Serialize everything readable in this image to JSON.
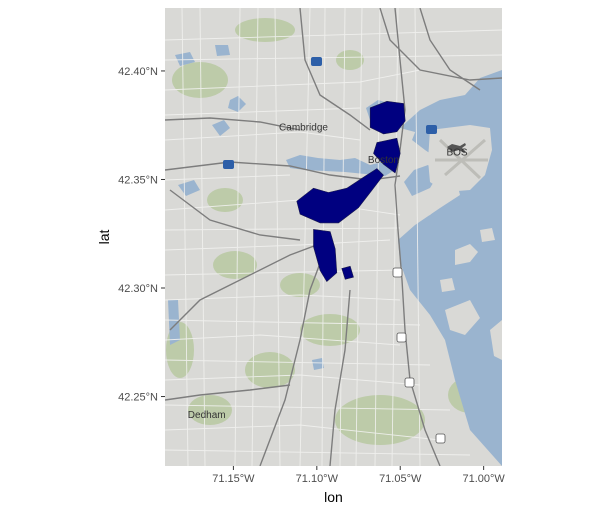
{
  "map": {
    "xlabel": "lon",
    "ylabel": "lat",
    "x_ticks": [
      {
        "value": -71.15,
        "label": "71.15°W"
      },
      {
        "value": -71.1,
        "label": "71.10°W"
      },
      {
        "value": -71.05,
        "label": "71.05°W"
      },
      {
        "value": -71.0,
        "label": "71.00°W"
      }
    ],
    "y_ticks": [
      {
        "value": 42.4,
        "label": "42.40°N"
      },
      {
        "value": 42.35,
        "label": "42.35°N"
      },
      {
        "value": 42.3,
        "label": "42.30°N"
      },
      {
        "value": 42.25,
        "label": "42.25°N"
      }
    ],
    "xlim": [
      -71.191,
      -70.989
    ],
    "ylim": [
      42.218,
      42.429
    ],
    "place_labels": [
      {
        "text": "Cambridge",
        "lon": -71.108,
        "lat": 42.3725
      },
      {
        "text": "Boston",
        "lon": -71.06,
        "lat": 42.3575
      },
      {
        "text": "BOS",
        "lon": -71.016,
        "lat": 42.361
      },
      {
        "text": "Dedham",
        "lon": -71.166,
        "lat": 42.24
      }
    ],
    "highlight_color": "#000080",
    "regions": [
      {
        "name": "north-end",
        "coords": [
          [
            -71.068,
            42.383
          ],
          [
            -71.058,
            42.386
          ],
          [
            -71.048,
            42.385
          ],
          [
            -71.047,
            42.377
          ],
          [
            -71.052,
            42.372
          ],
          [
            -71.06,
            42.371
          ],
          [
            -71.068,
            42.374
          ]
        ]
      },
      {
        "name": "downtown",
        "coords": [
          [
            -71.064,
            42.367
          ],
          [
            -71.052,
            42.369
          ],
          [
            -71.05,
            42.362
          ],
          [
            -71.053,
            42.353
          ],
          [
            -71.06,
            42.357
          ],
          [
            -71.066,
            42.362
          ]
        ]
      },
      {
        "name": "south-end-back-bay",
        "coords": [
          [
            -71.112,
            42.34
          ],
          [
            -71.102,
            42.346
          ],
          [
            -71.093,
            42.344
          ],
          [
            -71.082,
            42.346
          ],
          [
            -71.072,
            42.351
          ],
          [
            -71.064,
            42.355
          ],
          [
            -71.06,
            42.352
          ],
          [
            -71.067,
            42.345
          ],
          [
            -71.075,
            42.337
          ],
          [
            -71.087,
            42.33
          ],
          [
            -71.098,
            42.33
          ],
          [
            -71.11,
            42.334
          ]
        ]
      },
      {
        "name": "roxbury-jp",
        "coords": [
          [
            -71.102,
            42.327
          ],
          [
            -71.092,
            42.326
          ],
          [
            -71.089,
            42.318
          ],
          [
            -71.088,
            42.307
          ],
          [
            -71.094,
            42.303
          ],
          [
            -71.098,
            42.308
          ],
          [
            -71.102,
            42.319
          ]
        ]
      },
      {
        "name": "small-east",
        "coords": [
          [
            -71.085,
            42.309
          ],
          [
            -71.08,
            42.31
          ],
          [
            -71.078,
            42.305
          ],
          [
            -71.083,
            42.304
          ]
        ]
      }
    ]
  }
}
